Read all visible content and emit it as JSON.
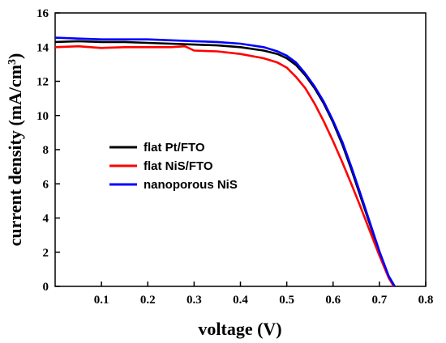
{
  "chart_data": {
    "type": "line",
    "xlabel": "voltage (V)",
    "ylabel": "current density (mA/cm3)",
    "ylabel_main": "current density (mA/cm",
    "ylabel_sup": "3",
    "ylabel_close": ")",
    "xlim": [
      0,
      0.8
    ],
    "ylim": [
      0,
      16
    ],
    "x_ticks": [
      0.1,
      0.2,
      0.3,
      0.4,
      0.5,
      0.6,
      0.7,
      0.8
    ],
    "x_tick_labels": [
      "0.1",
      "0.2",
      "0.3",
      "0.4",
      "0.5",
      "0.6",
      "0.7",
      "0.8"
    ],
    "y_ticks": [
      0,
      2,
      4,
      6,
      8,
      10,
      12,
      14,
      16
    ],
    "y_tick_labels": [
      "0",
      "2",
      "4",
      "6",
      "8",
      "10",
      "12",
      "14",
      "16"
    ],
    "grid": false,
    "legend_position": "center-left",
    "series": [
      {
        "name": "flat Pt/FTO",
        "color": "#000000",
        "x": [
          0,
          0.05,
          0.1,
          0.15,
          0.2,
          0.25,
          0.3,
          0.35,
          0.4,
          0.45,
          0.48,
          0.5,
          0.52,
          0.54,
          0.56,
          0.58,
          0.6,
          0.62,
          0.64,
          0.66,
          0.68,
          0.7,
          0.72,
          0.733
        ],
        "y": [
          14.3,
          14.35,
          14.3,
          14.3,
          14.25,
          14.2,
          14.15,
          14.1,
          14.0,
          13.8,
          13.6,
          13.35,
          12.95,
          12.35,
          11.6,
          10.7,
          9.6,
          8.3,
          6.8,
          5.2,
          3.6,
          2.0,
          0.6,
          0
        ]
      },
      {
        "name": "flat NiS/FTO",
        "color": "#ff0000",
        "x": [
          0,
          0.05,
          0.1,
          0.15,
          0.2,
          0.25,
          0.28,
          0.3,
          0.35,
          0.4,
          0.45,
          0.48,
          0.5,
          0.52,
          0.54,
          0.56,
          0.58,
          0.6,
          0.62,
          0.64,
          0.66,
          0.68,
          0.7,
          0.72,
          0.731
        ],
        "y": [
          14.0,
          14.05,
          13.95,
          14.0,
          14.0,
          14.0,
          14.05,
          13.8,
          13.75,
          13.6,
          13.35,
          13.1,
          12.8,
          12.25,
          11.6,
          10.7,
          9.65,
          8.5,
          7.25,
          5.95,
          4.6,
          3.2,
          1.8,
          0.5,
          0
        ]
      },
      {
        "name": "nanoporous NiS",
        "color": "#0000ff",
        "x": [
          0,
          0.05,
          0.1,
          0.15,
          0.2,
          0.25,
          0.3,
          0.35,
          0.4,
          0.45,
          0.48,
          0.5,
          0.52,
          0.54,
          0.56,
          0.58,
          0.6,
          0.62,
          0.64,
          0.66,
          0.68,
          0.7,
          0.72,
          0.733
        ],
        "y": [
          14.55,
          14.5,
          14.45,
          14.45,
          14.45,
          14.4,
          14.35,
          14.3,
          14.2,
          14.0,
          13.75,
          13.5,
          13.1,
          12.45,
          11.7,
          10.8,
          9.7,
          8.45,
          6.95,
          5.35,
          3.7,
          2.05,
          0.6,
          0
        ]
      }
    ]
  }
}
